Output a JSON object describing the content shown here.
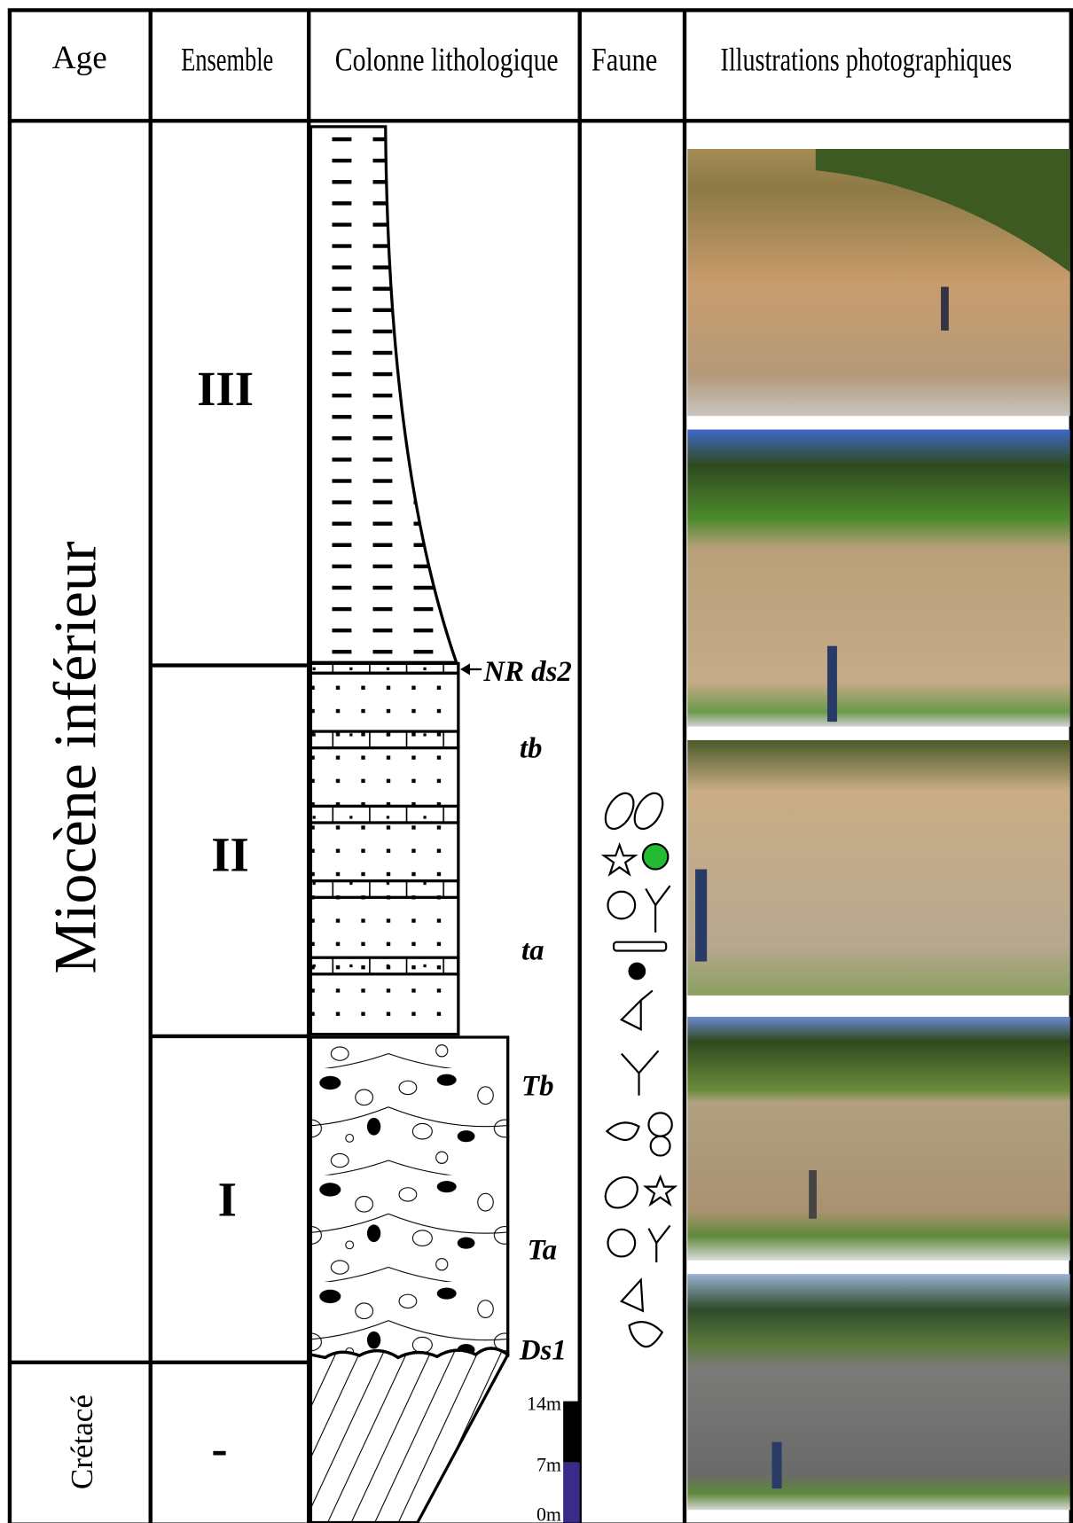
{
  "header": {
    "columns": [
      "Age",
      "Ensemble",
      "Colonne lithologique",
      "Faune",
      "Illustrations photographiques"
    ]
  },
  "ages": [
    "Miocène inférieur",
    "Crétacé"
  ],
  "ensembles": [
    "III",
    "II",
    "I",
    "-"
  ],
  "column_labels": [
    "NR ds2",
    "tb",
    "ta",
    "Tb",
    "Ta",
    "Ds1"
  ],
  "scale_labels": [
    "14m",
    "7m",
    "0m"
  ]
}
